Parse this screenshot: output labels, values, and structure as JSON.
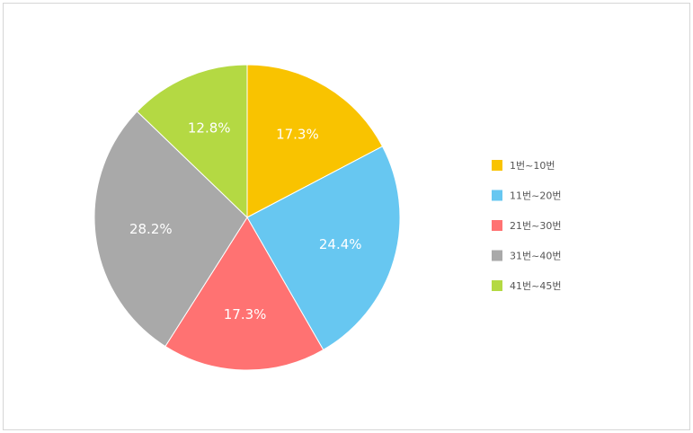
{
  "chart_data": {
    "type": "pie",
    "categories": [
      "1번~10번",
      "11번~20번",
      "21번~30번",
      "31번~40번",
      "41번~45번"
    ],
    "values": [
      17.3,
      24.4,
      17.3,
      28.2,
      12.8
    ],
    "labels": [
      "17.3%",
      "24.4%",
      "17.3%",
      "28.2%",
      "12.8%"
    ],
    "colors": [
      "#F9C300",
      "#67C7F1",
      "#FF7272",
      "#A9A9A9",
      "#B4D943"
    ],
    "start_angle": "top",
    "direction": "clockwise",
    "legend": {
      "position": "right",
      "items": [
        {
          "label": "1번~10번",
          "color": "#F9C300"
        },
        {
          "label": "11번~20번",
          "color": "#67C7F1"
        },
        {
          "label": "21번~30번",
          "color": "#FF7272"
        },
        {
          "label": "31번~40번",
          "color": "#A9A9A9"
        },
        {
          "label": "41번~45번",
          "color": "#B4D943"
        }
      ]
    }
  }
}
